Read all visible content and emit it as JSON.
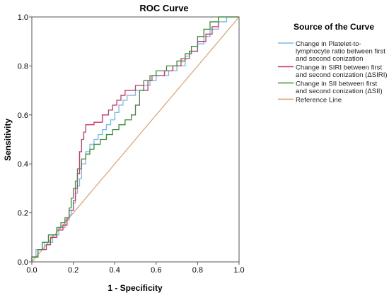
{
  "chart_data": {
    "type": "line",
    "title": "ROC Curve",
    "xlabel": "1 - Specificity",
    "ylabel": "Sensitivity",
    "xlim": [
      0,
      1
    ],
    "ylim": [
      0,
      1
    ],
    "x_ticks": [
      "0.0",
      "0.2",
      "0.4",
      "0.6",
      "0.8",
      "1.0"
    ],
    "y_ticks": [
      "0.0",
      "0.2",
      "0.4",
      "0.6",
      "0.8",
      "1.0"
    ],
    "grid": false,
    "legend": {
      "title": "Source of the Curve",
      "placement": "right"
    },
    "series": [
      {
        "name": "Change in Platelet-to-lymphocyte ratio between first and second conization",
        "label_lines": [
          "Change in Platelet-to-",
          "lymphocyte ratio between first",
          "and second conization"
        ],
        "color": "#7eb6e8",
        "step": true,
        "points": [
          [
            0,
            0
          ],
          [
            0,
            0.02
          ],
          [
            0.02,
            0.02
          ],
          [
            0.02,
            0.05
          ],
          [
            0.06,
            0.05
          ],
          [
            0.06,
            0.08
          ],
          [
            0.1,
            0.08
          ],
          [
            0.1,
            0.11
          ],
          [
            0.13,
            0.11
          ],
          [
            0.13,
            0.14
          ],
          [
            0.16,
            0.14
          ],
          [
            0.16,
            0.17
          ],
          [
            0.18,
            0.17
          ],
          [
            0.18,
            0.19
          ],
          [
            0.19,
            0.19
          ],
          [
            0.19,
            0.21
          ],
          [
            0.2,
            0.21
          ],
          [
            0.2,
            0.24
          ],
          [
            0.21,
            0.24
          ],
          [
            0.21,
            0.28
          ],
          [
            0.22,
            0.28
          ],
          [
            0.22,
            0.31
          ],
          [
            0.23,
            0.31
          ],
          [
            0.23,
            0.34
          ],
          [
            0.24,
            0.34
          ],
          [
            0.24,
            0.4
          ],
          [
            0.26,
            0.4
          ],
          [
            0.26,
            0.45
          ],
          [
            0.28,
            0.45
          ],
          [
            0.28,
            0.48
          ],
          [
            0.3,
            0.48
          ],
          [
            0.3,
            0.5
          ],
          [
            0.32,
            0.5
          ],
          [
            0.32,
            0.52
          ],
          [
            0.34,
            0.52
          ],
          [
            0.34,
            0.54
          ],
          [
            0.36,
            0.54
          ],
          [
            0.36,
            0.56
          ],
          [
            0.38,
            0.56
          ],
          [
            0.38,
            0.58
          ],
          [
            0.4,
            0.58
          ],
          [
            0.4,
            0.61
          ],
          [
            0.42,
            0.61
          ],
          [
            0.42,
            0.64
          ],
          [
            0.44,
            0.64
          ],
          [
            0.44,
            0.66
          ],
          [
            0.46,
            0.66
          ],
          [
            0.46,
            0.68
          ],
          [
            0.5,
            0.68
          ],
          [
            0.5,
            0.7
          ],
          [
            0.54,
            0.7
          ],
          [
            0.54,
            0.72
          ],
          [
            0.57,
            0.72
          ],
          [
            0.57,
            0.74
          ],
          [
            0.6,
            0.74
          ],
          [
            0.6,
            0.76
          ],
          [
            0.66,
            0.76
          ],
          [
            0.66,
            0.78
          ],
          [
            0.7,
            0.78
          ],
          [
            0.7,
            0.8
          ],
          [
            0.74,
            0.8
          ],
          [
            0.74,
            0.84
          ],
          [
            0.76,
            0.84
          ],
          [
            0.76,
            0.86
          ],
          [
            0.8,
            0.86
          ],
          [
            0.8,
            0.89
          ],
          [
            0.83,
            0.89
          ],
          [
            0.83,
            0.92
          ],
          [
            0.86,
            0.92
          ],
          [
            0.86,
            0.95
          ],
          [
            0.9,
            0.95
          ],
          [
            0.9,
            0.98
          ],
          [
            0.94,
            0.98
          ],
          [
            0.94,
            1.0
          ],
          [
            1.0,
            1.0
          ]
        ]
      },
      {
        "name": "Change in SIRI between first and second conization (ΔSIRI)",
        "label_lines": [
          "Change in SIRI between first",
          "and second conization (ΔSIRI)"
        ],
        "color": "#c8386a",
        "step": true,
        "points": [
          [
            0,
            0
          ],
          [
            0,
            0.02
          ],
          [
            0.03,
            0.02
          ],
          [
            0.03,
            0.05
          ],
          [
            0.07,
            0.05
          ],
          [
            0.07,
            0.07
          ],
          [
            0.09,
            0.07
          ],
          [
            0.09,
            0.1
          ],
          [
            0.12,
            0.1
          ],
          [
            0.12,
            0.13
          ],
          [
            0.15,
            0.13
          ],
          [
            0.15,
            0.15
          ],
          [
            0.17,
            0.15
          ],
          [
            0.17,
            0.18
          ],
          [
            0.18,
            0.18
          ],
          [
            0.18,
            0.21
          ],
          [
            0.2,
            0.21
          ],
          [
            0.2,
            0.25
          ],
          [
            0.21,
            0.25
          ],
          [
            0.21,
            0.3
          ],
          [
            0.22,
            0.3
          ],
          [
            0.22,
            0.36
          ],
          [
            0.23,
            0.36
          ],
          [
            0.23,
            0.45
          ],
          [
            0.24,
            0.45
          ],
          [
            0.24,
            0.5
          ],
          [
            0.25,
            0.5
          ],
          [
            0.25,
            0.53
          ],
          [
            0.26,
            0.53
          ],
          [
            0.26,
            0.56
          ],
          [
            0.3,
            0.56
          ],
          [
            0.3,
            0.57
          ],
          [
            0.34,
            0.57
          ],
          [
            0.34,
            0.6
          ],
          [
            0.37,
            0.6
          ],
          [
            0.37,
            0.62
          ],
          [
            0.39,
            0.62
          ],
          [
            0.39,
            0.64
          ],
          [
            0.41,
            0.64
          ],
          [
            0.41,
            0.66
          ],
          [
            0.43,
            0.66
          ],
          [
            0.43,
            0.68
          ],
          [
            0.45,
            0.68
          ],
          [
            0.45,
            0.7
          ],
          [
            0.5,
            0.7
          ],
          [
            0.5,
            0.72
          ],
          [
            0.54,
            0.72
          ],
          [
            0.54,
            0.7
          ],
          [
            0.56,
            0.7
          ],
          [
            0.56,
            0.74
          ],
          [
            0.58,
            0.74
          ],
          [
            0.58,
            0.76
          ],
          [
            0.64,
            0.76
          ],
          [
            0.64,
            0.78
          ],
          [
            0.68,
            0.78
          ],
          [
            0.68,
            0.8
          ],
          [
            0.72,
            0.8
          ],
          [
            0.72,
            0.83
          ],
          [
            0.76,
            0.83
          ],
          [
            0.76,
            0.86
          ],
          [
            0.8,
            0.86
          ],
          [
            0.8,
            0.9
          ],
          [
            0.84,
            0.9
          ],
          [
            0.84,
            0.93
          ],
          [
            0.87,
            0.93
          ],
          [
            0.87,
            0.96
          ],
          [
            0.9,
            0.96
          ],
          [
            0.9,
            1.0
          ],
          [
            1.0,
            1.0
          ]
        ]
      },
      {
        "name": "Change in SII between first and second conization (ΔSII)",
        "label_lines": [
          "Change in SII between first",
          "and second conization (ΔSII)"
        ],
        "color": "#3a8f3a",
        "step": true,
        "points": [
          [
            0,
            0
          ],
          [
            0,
            0.02
          ],
          [
            0.03,
            0.02
          ],
          [
            0.03,
            0.05
          ],
          [
            0.05,
            0.05
          ],
          [
            0.05,
            0.08
          ],
          [
            0.08,
            0.08
          ],
          [
            0.08,
            0.11
          ],
          [
            0.12,
            0.11
          ],
          [
            0.12,
            0.14
          ],
          [
            0.14,
            0.14
          ],
          [
            0.14,
            0.16
          ],
          [
            0.16,
            0.16
          ],
          [
            0.16,
            0.18
          ],
          [
            0.18,
            0.18
          ],
          [
            0.18,
            0.22
          ],
          [
            0.19,
            0.22
          ],
          [
            0.19,
            0.26
          ],
          [
            0.2,
            0.26
          ],
          [
            0.2,
            0.3
          ],
          [
            0.21,
            0.3
          ],
          [
            0.21,
            0.33
          ],
          [
            0.22,
            0.33
          ],
          [
            0.22,
            0.38
          ],
          [
            0.24,
            0.38
          ],
          [
            0.24,
            0.42
          ],
          [
            0.26,
            0.42
          ],
          [
            0.26,
            0.44
          ],
          [
            0.28,
            0.44
          ],
          [
            0.28,
            0.46
          ],
          [
            0.3,
            0.46
          ],
          [
            0.3,
            0.48
          ],
          [
            0.33,
            0.48
          ],
          [
            0.33,
            0.5
          ],
          [
            0.36,
            0.5
          ],
          [
            0.36,
            0.52
          ],
          [
            0.39,
            0.52
          ],
          [
            0.39,
            0.54
          ],
          [
            0.42,
            0.54
          ],
          [
            0.42,
            0.56
          ],
          [
            0.45,
            0.56
          ],
          [
            0.45,
            0.58
          ],
          [
            0.48,
            0.58
          ],
          [
            0.48,
            0.6
          ],
          [
            0.5,
            0.6
          ],
          [
            0.5,
            0.64
          ],
          [
            0.52,
            0.64
          ],
          [
            0.52,
            0.7
          ],
          [
            0.54,
            0.7
          ],
          [
            0.54,
            0.74
          ],
          [
            0.57,
            0.74
          ],
          [
            0.57,
            0.76
          ],
          [
            0.6,
            0.76
          ],
          [
            0.6,
            0.78
          ],
          [
            0.65,
            0.78
          ],
          [
            0.65,
            0.8
          ],
          [
            0.7,
            0.8
          ],
          [
            0.7,
            0.82
          ],
          [
            0.74,
            0.82
          ],
          [
            0.74,
            0.85
          ],
          [
            0.77,
            0.85
          ],
          [
            0.77,
            0.88
          ],
          [
            0.8,
            0.88
          ],
          [
            0.8,
            0.92
          ],
          [
            0.83,
            0.92
          ],
          [
            0.83,
            0.95
          ],
          [
            0.86,
            0.95
          ],
          [
            0.86,
            0.98
          ],
          [
            0.9,
            0.98
          ],
          [
            0.9,
            1.0
          ],
          [
            1.0,
            1.0
          ]
        ]
      },
      {
        "name": "Reference Line",
        "label_lines": [
          "Reference Line"
        ],
        "color": "#e0905a",
        "step": false,
        "points": [
          [
            0,
            0
          ],
          [
            1,
            1
          ]
        ]
      }
    ]
  }
}
